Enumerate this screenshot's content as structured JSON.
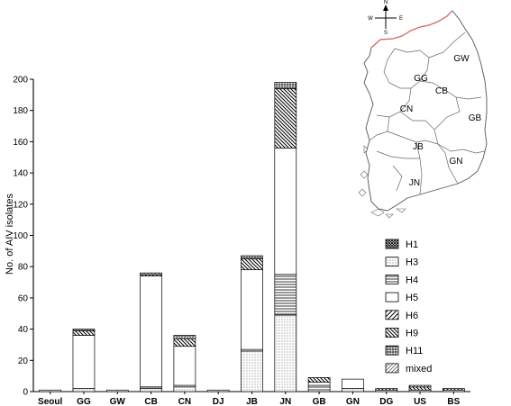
{
  "chart_data": {
    "type": "bar",
    "stacked": true,
    "title": "",
    "xlabel": "",
    "ylabel": "No. of AIV isolates",
    "ylim": [
      0,
      200
    ],
    "yticks": [
      0,
      20,
      40,
      60,
      80,
      100,
      120,
      140,
      160,
      180,
      200
    ],
    "categories": [
      "Seoul",
      "GG",
      "GW",
      "CB",
      "CN",
      "DJ",
      "JB",
      "JN",
      "GB",
      "GN",
      "DG",
      "US",
      "BS"
    ],
    "series": [
      {
        "name": "H1",
        "pattern": "crosshatch-dense",
        "values": [
          0,
          0,
          0,
          0,
          0,
          0,
          0,
          0,
          0,
          0,
          0,
          0,
          0
        ]
      },
      {
        "name": "H3",
        "pattern": "dots",
        "values": [
          0,
          2,
          0,
          2,
          3,
          0,
          26,
          49,
          0,
          2,
          0,
          0,
          0
        ]
      },
      {
        "name": "H4",
        "pattern": "horizontal",
        "values": [
          0,
          0,
          0,
          1,
          1,
          0,
          1,
          26,
          4,
          0,
          0,
          0,
          0
        ]
      },
      {
        "name": "H5",
        "pattern": "blank",
        "values": [
          1,
          34,
          1,
          71,
          25,
          1,
          51,
          81,
          2,
          6,
          1,
          1,
          1
        ]
      },
      {
        "name": "H6",
        "pattern": "diagonal-up",
        "values": [
          0,
          0,
          0,
          0,
          0,
          0,
          0,
          0,
          0,
          0,
          0,
          0,
          0
        ]
      },
      {
        "name": "H9",
        "pattern": "diagonal-down",
        "values": [
          0,
          3,
          0,
          1,
          5,
          0,
          7,
          38,
          3,
          0,
          1,
          2,
          1
        ]
      },
      {
        "name": "H11",
        "pattern": "grid",
        "values": [
          0,
          1,
          0,
          0,
          2,
          0,
          2,
          4,
          0,
          0,
          0,
          0,
          0
        ]
      },
      {
        "name": "mixed",
        "pattern": "diagonal-up-light",
        "values": [
          0,
          0,
          0,
          1,
          0,
          0,
          0,
          0,
          0,
          0,
          0,
          1,
          0
        ]
      }
    ],
    "grid": false,
    "legend_position": "right",
    "inset_map": {
      "compass": [
        "N",
        "E",
        "S",
        "W"
      ],
      "region_labels": [
        "GW",
        "GG",
        "CB",
        "CN",
        "GB",
        "JB",
        "GN",
        "JN"
      ]
    }
  }
}
